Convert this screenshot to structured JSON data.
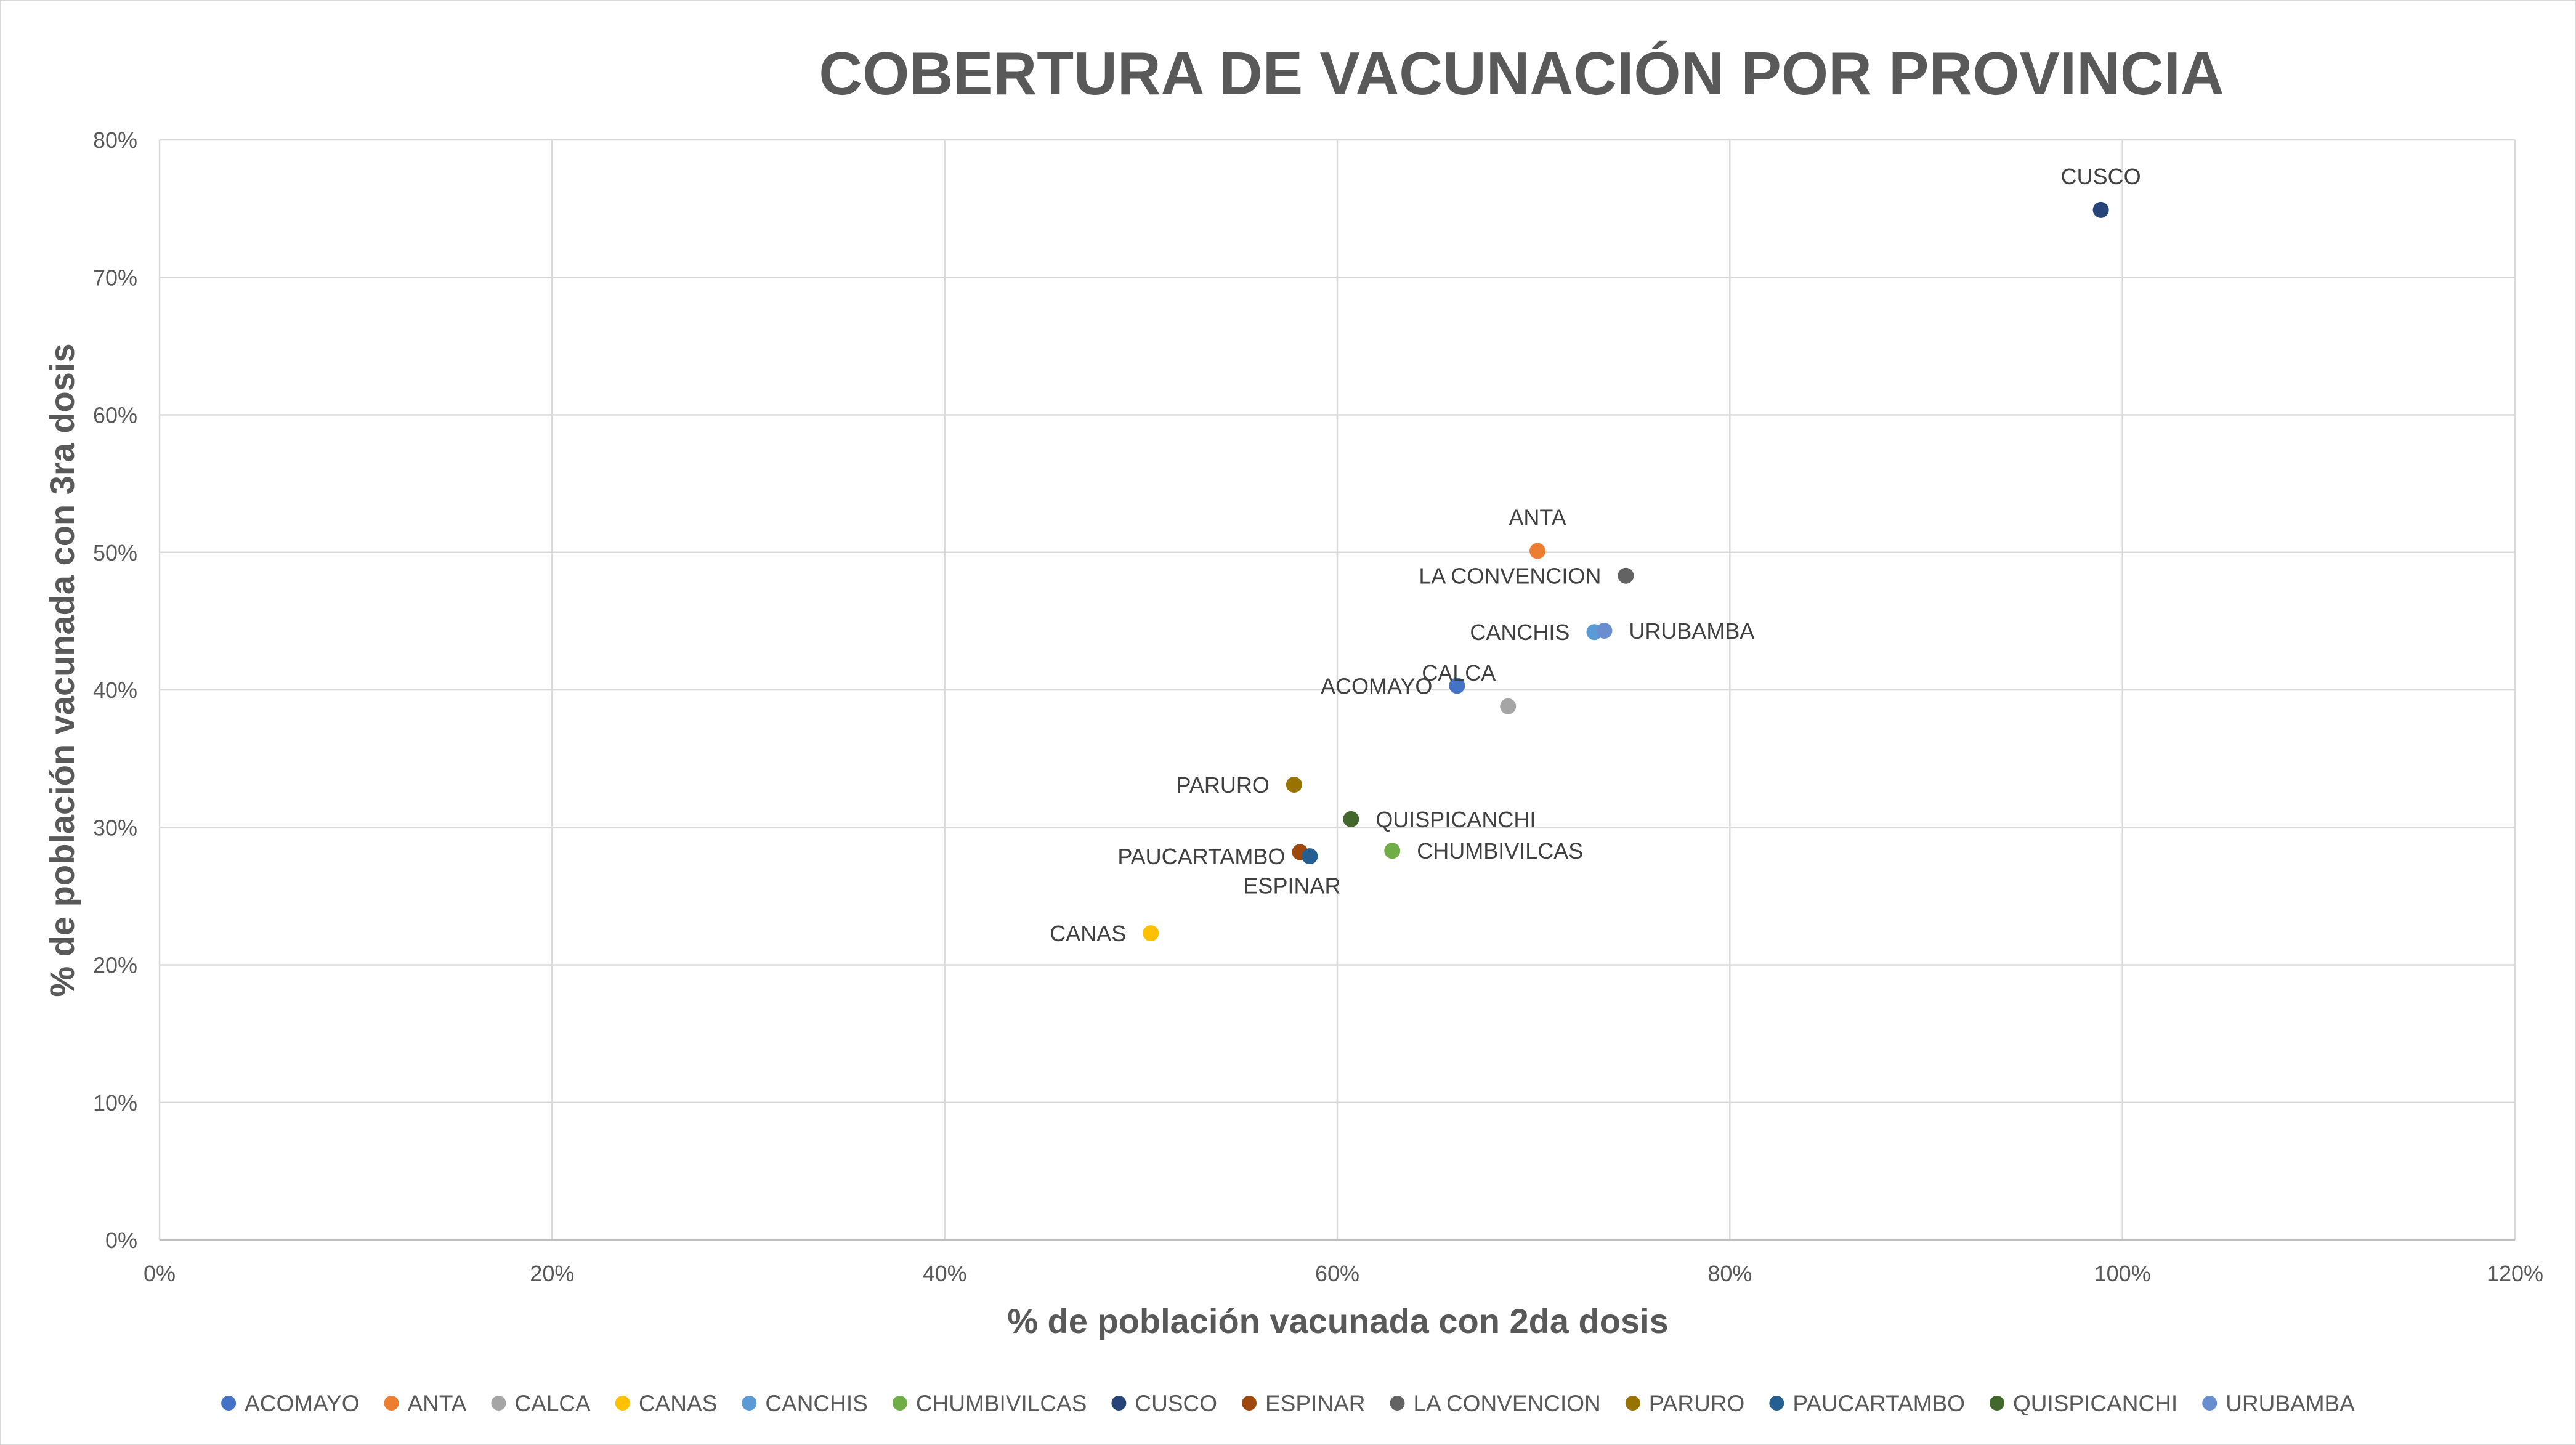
{
  "chart_data": {
    "type": "scatter",
    "title": "COBERTURA DE VACUNACIÓN POR PROVINCIA",
    "xlabel": "% de población vacunada con 2da dosis",
    "ylabel": "% de población vacunada con 3ra dosis",
    "xlim": [
      0,
      1.2
    ],
    "ylim": [
      0,
      0.8
    ],
    "x_ticks": [
      "0%",
      "20%",
      "40%",
      "60%",
      "80%",
      "100%",
      "120%"
    ],
    "y_ticks": [
      "0%",
      "10%",
      "20%",
      "30%",
      "40%",
      "50%",
      "60%",
      "70%",
      "80%"
    ],
    "grid": true,
    "legend_position": "bottom",
    "series": [
      {
        "name": "ACOMAYO",
        "x": 0.661,
        "y": 0.403,
        "color": "#4472C4",
        "label_side": "left"
      },
      {
        "name": "ANTA",
        "x": 0.702,
        "y": 0.501,
        "color": "#ED7D31",
        "label_side": "top"
      },
      {
        "name": "CALCA",
        "x": 0.687,
        "y": 0.388,
        "color": "#A5A5A5",
        "label_side": "top-left"
      },
      {
        "name": "CANAS",
        "x": 0.505,
        "y": 0.223,
        "color": "#FFC000",
        "label_side": "left"
      },
      {
        "name": "CANCHIS",
        "x": 0.731,
        "y": 0.442,
        "color": "#5B9BD5",
        "label_side": "left"
      },
      {
        "name": "CHUMBIVILCAS",
        "x": 0.628,
        "y": 0.283,
        "color": "#70AD47",
        "label_side": "right"
      },
      {
        "name": "CUSCO",
        "x": 0.989,
        "y": 0.749,
        "color": "#264478",
        "label_side": "top"
      },
      {
        "name": "ESPINAR",
        "x": 0.581,
        "y": 0.282,
        "color": "#9E480E",
        "label_side": "bottom"
      },
      {
        "name": "LA CONVENCION",
        "x": 0.747,
        "y": 0.483,
        "color": "#636363",
        "label_side": "left"
      },
      {
        "name": "PARURO",
        "x": 0.578,
        "y": 0.331,
        "color": "#997300",
        "label_side": "left"
      },
      {
        "name": "PAUCARTAMBO",
        "x": 0.586,
        "y": 0.279,
        "color": "#255E91",
        "label_side": "left"
      },
      {
        "name": "QUISPICANCHI",
        "x": 0.607,
        "y": 0.306,
        "color": "#43682B",
        "label_side": "right"
      },
      {
        "name": "URUBAMBA",
        "x": 0.736,
        "y": 0.443,
        "color": "#698ED0",
        "label_side": "right"
      }
    ]
  }
}
